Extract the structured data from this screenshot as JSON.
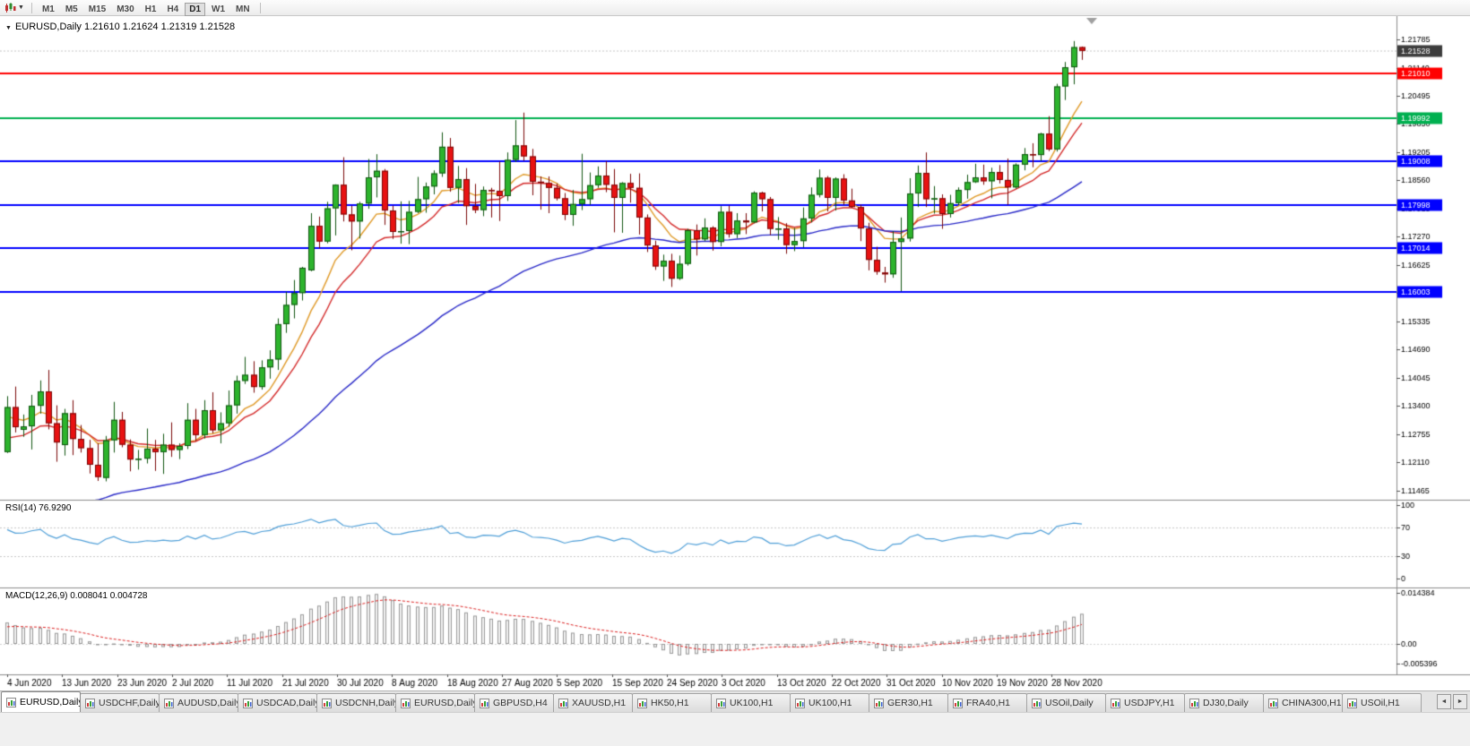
{
  "toolbar": {
    "timeframes": [
      "M1",
      "M5",
      "M15",
      "M30",
      "H1",
      "H4",
      "D1",
      "W1",
      "MN"
    ],
    "active_timeframe": "D1",
    "chart_menu_caret": "▼"
  },
  "chart": {
    "title": "EURUSD,Daily 1.21610 1.21624 1.21319 1.21528",
    "expander_icon": "▼",
    "rsi_label": "RSI(14) 76.9290",
    "macd_label": "MACD(12,26,9) 0.008041 0.004728"
  },
  "chart_data": {
    "type": "candlestick",
    "symbol": "EURUSD",
    "period": "Daily",
    "current_bar": {
      "open": "1.21610",
      "high": "1.21624",
      "low": "1.21319",
      "close": "1.21528"
    },
    "price_max": 1.2232,
    "price_min": 1.1125,
    "y_axis_ticks": [
      "1.21785",
      "1.21140",
      "1.20495",
      "1.19850",
      "1.19205",
      "1.18560",
      "1.17915",
      "1.17270",
      "1.16625",
      "1.15980",
      "1.15335",
      "1.14690",
      "1.14045",
      "1.13400",
      "1.12755",
      "1.12110",
      "1.11465"
    ],
    "x_axis_labels": [
      "4 Jun 2020",
      "13 Jun 2020",
      "23 Jun 2020",
      "2 Jul 2020",
      "11 Jul 2020",
      "21 Jul 2020",
      "30 Jul 2020",
      "8 Aug 2020",
      "18 Aug 2020",
      "27 Aug 2020",
      "5 Sep 2020",
      "15 Sep 2020",
      "24 Sep 2020",
      "3 Oct 2020",
      "13 Oct 2020",
      "22 Oct 2020",
      "31 Oct 2020",
      "10 Nov 2020",
      "19 Nov 2020",
      "28 Nov 2020"
    ],
    "horizontal_levels": [
      {
        "price": 1.2101,
        "label": "1.21010",
        "color": "#ff0000"
      },
      {
        "price": 1.19992,
        "label": "1.19992",
        "color": "#00b050"
      },
      {
        "price": 1.19008,
        "label": "1.19008",
        "color": "#0000ff"
      },
      {
        "price": 1.17998,
        "label": "1.17998",
        "color": "#0000ff"
      },
      {
        "price": 1.17014,
        "label": "1.17014",
        "color": "#0000ff"
      },
      {
        "price": 1.16003,
        "label": "1.16003",
        "color": "#0000ff"
      }
    ],
    "current_price_marker": {
      "price": 1.21528,
      "label": "1.21528",
      "color": "#3c3c3c"
    },
    "moving_averages": [
      {
        "type": "EMA",
        "period": 9,
        "color": "#e09a28",
        "seed": 1.131
      },
      {
        "type": "EMA",
        "period": 14,
        "color": "#d42a2a",
        "seed": 1.1255
      },
      {
        "type": "EMA",
        "period": 50,
        "color": "#2929c8",
        "seed": 1.103
      }
    ],
    "candles": [
      [
        1.1234,
        1.1362,
        1.1232,
        1.1337
      ],
      [
        1.1337,
        1.1384,
        1.1279,
        1.1291
      ],
      [
        1.1285,
        1.132,
        1.1269,
        1.1293
      ],
      [
        1.1293,
        1.1365,
        1.124,
        1.134
      ],
      [
        1.134,
        1.1398,
        1.1322,
        1.1373
      ],
      [
        1.1373,
        1.1422,
        1.1286,
        1.13
      ],
      [
        1.13,
        1.1341,
        1.1212,
        1.1256
      ],
      [
        1.125,
        1.1333,
        1.1226,
        1.1323
      ],
      [
        1.1323,
        1.1353,
        1.1227,
        1.1264
      ],
      [
        1.1264,
        1.1296,
        1.1233,
        1.1243
      ],
      [
        1.1243,
        1.1262,
        1.1185,
        1.1205
      ],
      [
        1.1205,
        1.1254,
        1.1168,
        1.1177
      ],
      [
        1.1175,
        1.1271,
        1.1167,
        1.1261
      ],
      [
        1.1261,
        1.1349,
        1.1233,
        1.1308
      ],
      [
        1.1308,
        1.1326,
        1.1245,
        1.1251
      ],
      [
        1.1251,
        1.1263,
        1.119,
        1.1217
      ],
      [
        1.1217,
        1.1239,
        1.1194,
        1.1219
      ],
      [
        1.1219,
        1.1288,
        1.1208,
        1.1242
      ],
      [
        1.1242,
        1.1262,
        1.1191,
        1.1234
      ],
      [
        1.1234,
        1.1276,
        1.1184,
        1.1251
      ],
      [
        1.1251,
        1.1302,
        1.1223,
        1.1239
      ],
      [
        1.1239,
        1.1254,
        1.1218,
        1.1248
      ],
      [
        1.1248,
        1.1346,
        1.1241,
        1.1308
      ],
      [
        1.1308,
        1.1333,
        1.1259,
        1.1273
      ],
      [
        1.1273,
        1.1353,
        1.1265,
        1.133
      ],
      [
        1.133,
        1.1371,
        1.1277,
        1.1284
      ],
      [
        1.1284,
        1.1325,
        1.1254,
        1.13
      ],
      [
        1.13,
        1.1375,
        1.1292,
        1.1341
      ],
      [
        1.1341,
        1.1409,
        1.1322,
        1.1397
      ],
      [
        1.1397,
        1.1452,
        1.139,
        1.1411
      ],
      [
        1.1411,
        1.1442,
        1.137,
        1.1383
      ],
      [
        1.1383,
        1.1444,
        1.1377,
        1.1428
      ],
      [
        1.1428,
        1.1467,
        1.1402,
        1.1446
      ],
      [
        1.1446,
        1.154,
        1.1422,
        1.1527
      ],
      [
        1.1527,
        1.1601,
        1.1507,
        1.1571
      ],
      [
        1.1571,
        1.1628,
        1.154,
        1.1598
      ],
      [
        1.1598,
        1.1658,
        1.1581,
        1.1656
      ],
      [
        1.165,
        1.1781,
        1.1648,
        1.1752
      ],
      [
        1.1752,
        1.1773,
        1.17,
        1.1716
      ],
      [
        1.1716,
        1.1807,
        1.1712,
        1.1792
      ],
      [
        1.1792,
        1.1847,
        1.173,
        1.1846
      ],
      [
        1.1846,
        1.1909,
        1.1762,
        1.1778
      ],
      [
        1.1778,
        1.1798,
        1.1696,
        1.1762
      ],
      [
        1.1762,
        1.1807,
        1.1723,
        1.1803
      ],
      [
        1.1803,
        1.1905,
        1.1791,
        1.1863
      ],
      [
        1.1863,
        1.1916,
        1.1817,
        1.1878
      ],
      [
        1.1878,
        1.1882,
        1.1754,
        1.1787
      ],
      [
        1.1787,
        1.1798,
        1.1722,
        1.1738
      ],
      [
        1.1738,
        1.1808,
        1.1711,
        1.174
      ],
      [
        1.174,
        1.1809,
        1.171,
        1.1784
      ],
      [
        1.1784,
        1.1864,
        1.1781,
        1.1813
      ],
      [
        1.1813,
        1.1851,
        1.1782,
        1.1842
      ],
      [
        1.1842,
        1.1879,
        1.1824,
        1.1872
      ],
      [
        1.1872,
        1.1966,
        1.1864,
        1.1933
      ],
      [
        1.1933,
        1.1953,
        1.183,
        1.1839
      ],
      [
        1.1839,
        1.1889,
        1.1804,
        1.1859
      ],
      [
        1.1859,
        1.1884,
        1.1754,
        1.1797
      ],
      [
        1.1797,
        1.1848,
        1.1781,
        1.1788
      ],
      [
        1.1788,
        1.1842,
        1.1774,
        1.1834
      ],
      [
        1.1834,
        1.1839,
        1.1771,
        1.1832
      ],
      [
        1.1832,
        1.1899,
        1.1763,
        1.182
      ],
      [
        1.182,
        1.192,
        1.1809,
        1.1903
      ],
      [
        1.1903,
        1.1994,
        1.1898,
        1.1936
      ],
      [
        1.1936,
        1.2011,
        1.1901,
        1.1911
      ],
      [
        1.1911,
        1.1928,
        1.1822,
        1.1853
      ],
      [
        1.1853,
        1.1865,
        1.1789,
        1.185
      ],
      [
        1.185,
        1.1865,
        1.1781,
        1.1839
      ],
      [
        1.1839,
        1.1849,
        1.181,
        1.1815
      ],
      [
        1.1815,
        1.1827,
        1.1765,
        1.1777
      ],
      [
        1.1777,
        1.1834,
        1.1752,
        1.1802
      ],
      [
        1.1802,
        1.1917,
        1.1788,
        1.1813
      ],
      [
        1.1813,
        1.1874,
        1.18,
        1.1845
      ],
      [
        1.1845,
        1.1888,
        1.1839,
        1.1867
      ],
      [
        1.1867,
        1.19,
        1.1829,
        1.1846
      ],
      [
        1.1846,
        1.1882,
        1.1737,
        1.1816
      ],
      [
        1.1816,
        1.1852,
        1.1736,
        1.185
      ],
      [
        1.185,
        1.1871,
        1.1805,
        1.1839
      ],
      [
        1.1839,
        1.1872,
        1.1732,
        1.1771
      ],
      [
        1.1771,
        1.1778,
        1.1692,
        1.1707
      ],
      [
        1.1707,
        1.1718,
        1.1651,
        1.1659
      ],
      [
        1.1659,
        1.1686,
        1.1626,
        1.1672
      ],
      [
        1.1672,
        1.1688,
        1.1612,
        1.1631
      ],
      [
        1.1631,
        1.1684,
        1.1628,
        1.1665
      ],
      [
        1.1665,
        1.1745,
        1.1661,
        1.1742
      ],
      [
        1.1742,
        1.1755,
        1.1684,
        1.1721
      ],
      [
        1.1721,
        1.1769,
        1.1717,
        1.1748
      ],
      [
        1.1748,
        1.1751,
        1.1695,
        1.1715
      ],
      [
        1.1715,
        1.1797,
        1.1705,
        1.1784
      ],
      [
        1.1784,
        1.1798,
        1.1725,
        1.1733
      ],
      [
        1.1733,
        1.1781,
        1.1724,
        1.1764
      ],
      [
        1.1764,
        1.1781,
        1.1733,
        1.176
      ],
      [
        1.176,
        1.1831,
        1.1758,
        1.1828
      ],
      [
        1.1828,
        1.183,
        1.1785,
        1.1813
      ],
      [
        1.1813,
        1.1818,
        1.1731,
        1.1745
      ],
      [
        1.1745,
        1.1772,
        1.172,
        1.1746
      ],
      [
        1.1746,
        1.1758,
        1.1688,
        1.1708
      ],
      [
        1.1708,
        1.1747,
        1.1694,
        1.1717
      ],
      [
        1.1717,
        1.1794,
        1.1703,
        1.1769
      ],
      [
        1.1769,
        1.184,
        1.176,
        1.1823
      ],
      [
        1.1823,
        1.1881,
        1.1817,
        1.1862
      ],
      [
        1.1862,
        1.1866,
        1.1785,
        1.1816
      ],
      [
        1.1816,
        1.1863,
        1.1787,
        1.186
      ],
      [
        1.186,
        1.187,
        1.18,
        1.181
      ],
      [
        1.181,
        1.1837,
        1.1793,
        1.1795
      ],
      [
        1.1795,
        1.18,
        1.1717,
        1.1746
      ],
      [
        1.1746,
        1.1759,
        1.165,
        1.1674
      ],
      [
        1.1674,
        1.1704,
        1.164,
        1.1647
      ],
      [
        1.1645,
        1.1658,
        1.1622,
        1.1641
      ],
      [
        1.1641,
        1.174,
        1.1633,
        1.1715
      ],
      [
        1.1715,
        1.1771,
        1.1602,
        1.1723
      ],
      [
        1.1723,
        1.1861,
        1.1716,
        1.1826
      ],
      [
        1.1826,
        1.189,
        1.1795,
        1.1873
      ],
      [
        1.1873,
        1.192,
        1.1795,
        1.1813
      ],
      [
        1.1813,
        1.1843,
        1.178,
        1.1815
      ],
      [
        1.1815,
        1.1824,
        1.1745,
        1.1779
      ],
      [
        1.1779,
        1.1823,
        1.1771,
        1.1804
      ],
      [
        1.1804,
        1.184,
        1.1799,
        1.1834
      ],
      [
        1.1834,
        1.1869,
        1.1814,
        1.1852
      ],
      [
        1.1852,
        1.1894,
        1.185,
        1.1863
      ],
      [
        1.1863,
        1.1892,
        1.1846,
        1.1854
      ],
      [
        1.1854,
        1.1885,
        1.1815,
        1.1875
      ],
      [
        1.1875,
        1.1891,
        1.1849,
        1.1857
      ],
      [
        1.1857,
        1.1906,
        1.18,
        1.184
      ],
      [
        1.184,
        1.1895,
        1.1837,
        1.1892
      ],
      [
        1.1892,
        1.193,
        1.1879,
        1.1916
      ],
      [
        1.1916,
        1.1941,
        1.1886,
        1.1914
      ],
      [
        1.1914,
        1.1965,
        1.19,
        1.1963
      ],
      [
        1.1963,
        1.2003,
        1.1923,
        1.1927
      ],
      [
        1.1927,
        1.2077,
        1.1922,
        1.2071
      ],
      [
        1.2071,
        1.2127,
        1.204,
        1.2115
      ],
      [
        1.2115,
        1.2175,
        1.2076,
        1.2161
      ],
      [
        1.2161,
        1.21624,
        1.21319,
        1.21528
      ]
    ],
    "rsi_panel": {
      "label": "RSI(14)",
      "current": "76.9290",
      "period": 14,
      "scale": [
        "100",
        "70",
        "30",
        "0"
      ],
      "levels": [
        70,
        30
      ],
      "line_color": "#4f9fd8"
    },
    "macd_panel": {
      "label": "MACD(12,26,9)",
      "macd_value": "0.008041",
      "signal_value": "0.004728",
      "fast": 12,
      "slow": 26,
      "signal_period": 9,
      "scale_top": "0.014384",
      "scale_zero": "0.00",
      "scale_bottom": "-0.005396",
      "histogram_color": "#9a9a9a",
      "signal_color": "#dd2222"
    },
    "candle_colors": {
      "up_fill": "#2db42d",
      "up_edge": "#115511",
      "down_fill": "#e81212",
      "down_edge": "#7a0606"
    }
  },
  "tab_bar": {
    "tabs": [
      "EURUSD,Daily",
      "USDCHF,Daily",
      "AUDUSD,Daily",
      "USDCAD,Daily",
      "USDCNH,Daily",
      "EURUSD,Daily",
      "GBPUSD,H4",
      "XAUUSD,H1",
      "HK50,H1",
      "UK100,H1",
      "UK100,H1",
      "GER30,H1",
      "FRA40,H1",
      "USOil,Daily",
      "USDJPY,H1",
      "DJ30,Daily",
      "CHINA300,H1",
      "USOil,H1"
    ],
    "active_tab_index": 0,
    "scroll_left_icon": "◄",
    "scroll_right_icon": "►"
  }
}
